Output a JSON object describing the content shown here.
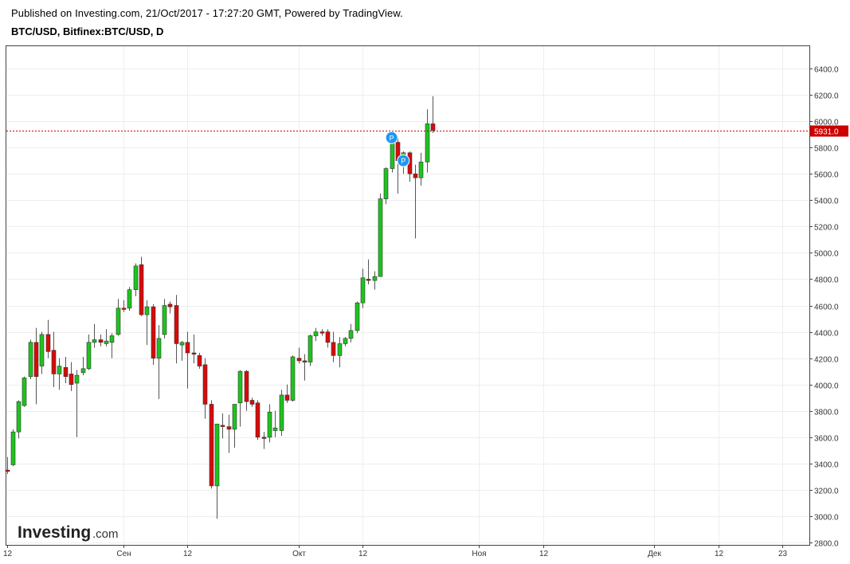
{
  "header": {
    "published": "Published on Investing.com, 21/Oct/2017 - 17:27:20 GMT, Powered by TradingView.",
    "title": "BTC/USD, Bitfinex:BTC/USD, D"
  },
  "logo": {
    "brand": "Investing",
    "suffix": ".com"
  },
  "colors": {
    "up": "#1dc41d",
    "down": "#d90a0a",
    "price_line": "#cc0000",
    "marker": "#2196f3"
  },
  "chart_data": {
    "type": "candlestick",
    "ylim": [
      2780,
      6520
    ],
    "y_ticks": [
      "6400.0",
      "6200.0",
      "6000.0",
      "5800.0",
      "5600.0",
      "5400.0",
      "5200.0",
      "5000.0",
      "4800.0",
      "4600.0",
      "4400.0",
      "4200.0",
      "4000.0",
      "3800.0",
      "3600.0",
      "3400.0",
      "3200.0",
      "3000.0",
      "2800.0"
    ],
    "x_ticks": [
      {
        "label": "12",
        "date": "2017-08-12"
      },
      {
        "label": "Сен",
        "date": "2017-09-01"
      },
      {
        "label": "12",
        "date": "2017-09-12"
      },
      {
        "label": "Окт",
        "date": "2017-10-01"
      },
      {
        "label": "12",
        "date": "2017-10-12"
      },
      {
        "label": "Ноя",
        "date": "2017-11-01"
      },
      {
        "label": "12",
        "date": "2017-11-12"
      },
      {
        "label": "Дек",
        "date": "2017-12-01"
      },
      {
        "label": "12",
        "date": "2017-12-12"
      },
      {
        "label": "23",
        "date": "2017-12-23"
      }
    ],
    "last_price": "5931.0",
    "last_value": 5931,
    "markers": [
      {
        "label": "P",
        "date": "2017-10-17",
        "y": 5875
      },
      {
        "label": "P",
        "date": "2017-10-19",
        "y": 5700
      }
    ],
    "candles": [
      {
        "date": "2017-08-12",
        "open": 3350,
        "high": 3450,
        "low": 3320,
        "close": 3340
      },
      {
        "date": "2017-08-13",
        "open": 3390,
        "high": 3660,
        "low": 3380,
        "close": 3640
      },
      {
        "date": "2017-08-14",
        "open": 3640,
        "high": 3880,
        "low": 3590,
        "close": 3870
      },
      {
        "date": "2017-08-15",
        "open": 3840,
        "high": 4060,
        "low": 3830,
        "close": 4050
      },
      {
        "date": "2017-08-16",
        "open": 4060,
        "high": 4340,
        "low": 4040,
        "close": 4320
      },
      {
        "date": "2017-08-17",
        "open": 4320,
        "high": 4430,
        "low": 3850,
        "close": 4060
      },
      {
        "date": "2017-08-18",
        "open": 4140,
        "high": 4400,
        "low": 4080,
        "close": 4380
      },
      {
        "date": "2017-08-19",
        "open": 4380,
        "high": 4490,
        "low": 4200,
        "close": 4250
      },
      {
        "date": "2017-08-20",
        "open": 4260,
        "high": 4400,
        "low": 3980,
        "close": 4080
      },
      {
        "date": "2017-08-21",
        "open": 4080,
        "high": 4200,
        "low": 3960,
        "close": 4140
      },
      {
        "date": "2017-08-22",
        "open": 4130,
        "high": 4210,
        "low": 4010,
        "close": 4060
      },
      {
        "date": "2017-08-23",
        "open": 4080,
        "high": 4170,
        "low": 3950,
        "close": 4000
      },
      {
        "date": "2017-08-24",
        "open": 4010,
        "high": 4110,
        "low": 3600,
        "close": 4070
      },
      {
        "date": "2017-08-25",
        "open": 4090,
        "high": 4210,
        "low": 4070,
        "close": 4120
      },
      {
        "date": "2017-08-26",
        "open": 4120,
        "high": 4380,
        "low": 4110,
        "close": 4320
      },
      {
        "date": "2017-08-27",
        "open": 4320,
        "high": 4460,
        "low": 4280,
        "close": 4340
      },
      {
        "date": "2017-08-28",
        "open": 4340,
        "high": 4380,
        "low": 4290,
        "close": 4320
      },
      {
        "date": "2017-08-29",
        "open": 4310,
        "high": 4420,
        "low": 4290,
        "close": 4330
      },
      {
        "date": "2017-08-30",
        "open": 4320,
        "high": 4390,
        "low": 4200,
        "close": 4370
      },
      {
        "date": "2017-08-31",
        "open": 4380,
        "high": 4650,
        "low": 4370,
        "close": 4580
      },
      {
        "date": "2017-09-01",
        "open": 4580,
        "high": 4640,
        "low": 4550,
        "close": 4570
      },
      {
        "date": "2017-09-02",
        "open": 4580,
        "high": 4740,
        "low": 4560,
        "close": 4720
      },
      {
        "date": "2017-09-03",
        "open": 4720,
        "high": 4920,
        "low": 4670,
        "close": 4900
      },
      {
        "date": "2017-09-04",
        "open": 4910,
        "high": 4970,
        "low": 4520,
        "close": 4530
      },
      {
        "date": "2017-09-05",
        "open": 4530,
        "high": 4640,
        "low": 4300,
        "close": 4590
      },
      {
        "date": "2017-09-06",
        "open": 4590,
        "high": 4610,
        "low": 4150,
        "close": 4200
      },
      {
        "date": "2017-09-07",
        "open": 4200,
        "high": 4450,
        "low": 3890,
        "close": 4350
      },
      {
        "date": "2017-09-08",
        "open": 4380,
        "high": 4650,
        "low": 4350,
        "close": 4600
      },
      {
        "date": "2017-09-09",
        "open": 4610,
        "high": 4630,
        "low": 4540,
        "close": 4590
      },
      {
        "date": "2017-09-10",
        "open": 4600,
        "high": 4680,
        "low": 4160,
        "close": 4310
      },
      {
        "date": "2017-09-11",
        "open": 4300,
        "high": 4330,
        "low": 4180,
        "close": 4320
      },
      {
        "date": "2017-09-12",
        "open": 4320,
        "high": 4400,
        "low": 3970,
        "close": 4240
      },
      {
        "date": "2017-09-13",
        "open": 4240,
        "high": 4380,
        "low": 4160,
        "close": 4230
      },
      {
        "date": "2017-09-14",
        "open": 4220,
        "high": 4240,
        "low": 4120,
        "close": 4140
      },
      {
        "date": "2017-09-15",
        "open": 4150,
        "high": 4200,
        "low": 3740,
        "close": 3850
      },
      {
        "date": "2017-09-16",
        "open": 3850,
        "high": 3880,
        "low": 3210,
        "close": 3230
      },
      {
        "date": "2017-09-17",
        "open": 3230,
        "high": 3700,
        "low": 2980,
        "close": 3700
      },
      {
        "date": "2017-09-18",
        "open": 3690,
        "high": 3780,
        "low": 3590,
        "close": 3680
      },
      {
        "date": "2017-09-19",
        "open": 3680,
        "high": 3770,
        "low": 3480,
        "close": 3660
      },
      {
        "date": "2017-09-20",
        "open": 3660,
        "high": 3830,
        "low": 3520,
        "close": 3850
      },
      {
        "date": "2017-09-21",
        "open": 3860,
        "high": 4110,
        "low": 3680,
        "close": 4100
      },
      {
        "date": "2017-09-22",
        "open": 4100,
        "high": 4110,
        "low": 3800,
        "close": 3870
      },
      {
        "date": "2017-09-23",
        "open": 3880,
        "high": 3900,
        "low": 3830,
        "close": 3850
      },
      {
        "date": "2017-09-24",
        "open": 3860,
        "high": 3880,
        "low": 3580,
        "close": 3600
      },
      {
        "date": "2017-09-25",
        "open": 3600,
        "high": 3640,
        "low": 3510,
        "close": 3590
      },
      {
        "date": "2017-09-26",
        "open": 3600,
        "high": 3850,
        "low": 3560,
        "close": 3790
      },
      {
        "date": "2017-09-27",
        "open": 3650,
        "high": 3800,
        "low": 3600,
        "close": 3670
      },
      {
        "date": "2017-09-28",
        "open": 3650,
        "high": 3960,
        "low": 3610,
        "close": 3920
      },
      {
        "date": "2017-09-29",
        "open": 3920,
        "high": 4000,
        "low": 3860,
        "close": 3880
      },
      {
        "date": "2017-09-30",
        "open": 3880,
        "high": 4220,
        "low": 3870,
        "close": 4210
      },
      {
        "date": "2017-10-01",
        "open": 4200,
        "high": 4280,
        "low": 4160,
        "close": 4180
      },
      {
        "date": "2017-10-02",
        "open": 4180,
        "high": 4230,
        "low": 4030,
        "close": 4170
      },
      {
        "date": "2017-10-03",
        "open": 4170,
        "high": 4380,
        "low": 4140,
        "close": 4370
      },
      {
        "date": "2017-10-04",
        "open": 4370,
        "high": 4430,
        "low": 4330,
        "close": 4400
      },
      {
        "date": "2017-10-05",
        "open": 4400,
        "high": 4420,
        "low": 4370,
        "close": 4390
      },
      {
        "date": "2017-10-06",
        "open": 4400,
        "high": 4420,
        "low": 4280,
        "close": 4320
      },
      {
        "date": "2017-10-07",
        "open": 4320,
        "high": 4400,
        "low": 4170,
        "close": 4220
      },
      {
        "date": "2017-10-08",
        "open": 4220,
        "high": 4360,
        "low": 4130,
        "close": 4310
      },
      {
        "date": "2017-10-09",
        "open": 4310,
        "high": 4360,
        "low": 4290,
        "close": 4350
      },
      {
        "date": "2017-10-10",
        "open": 4350,
        "high": 4460,
        "low": 4320,
        "close": 4410
      },
      {
        "date": "2017-10-11",
        "open": 4410,
        "high": 4630,
        "low": 4390,
        "close": 4620
      },
      {
        "date": "2017-10-12",
        "open": 4620,
        "high": 4880,
        "low": 4580,
        "close": 4810
      },
      {
        "date": "2017-10-13",
        "open": 4800,
        "high": 4950,
        "low": 4760,
        "close": 4790
      },
      {
        "date": "2017-10-14",
        "open": 4790,
        "high": 4860,
        "low": 4720,
        "close": 4820
      },
      {
        "date": "2017-10-15",
        "open": 4820,
        "high": 5450,
        "low": 4820,
        "close": 5410
      },
      {
        "date": "2017-10-16",
        "open": 5410,
        "high": 5650,
        "low": 5370,
        "close": 5640
      },
      {
        "date": "2017-10-17",
        "open": 5640,
        "high": 5860,
        "low": 5610,
        "close": 5840
      },
      {
        "date": "2017-10-18",
        "open": 5840,
        "high": 5870,
        "low": 5450,
        "close": 5700
      },
      {
        "date": "2017-10-19",
        "open": 5690,
        "high": 5770,
        "low": 5600,
        "close": 5760
      },
      {
        "date": "2017-10-20",
        "open": 5760,
        "high": 5770,
        "low": 5540,
        "close": 5600
      },
      {
        "date": "2017-10-21",
        "open": 5600,
        "high": 5670,
        "low": 5110,
        "close": 5570
      },
      {
        "date": "2017-10-22",
        "open": 5570,
        "high": 5760,
        "low": 5510,
        "close": 5690
      },
      {
        "date": "2017-10-23",
        "open": 5690,
        "high": 6090,
        "low": 5610,
        "close": 5980
      },
      {
        "date": "2017-10-24",
        "open": 5980,
        "high": 6190,
        "low": 5910,
        "close": 5931
      }
    ]
  }
}
